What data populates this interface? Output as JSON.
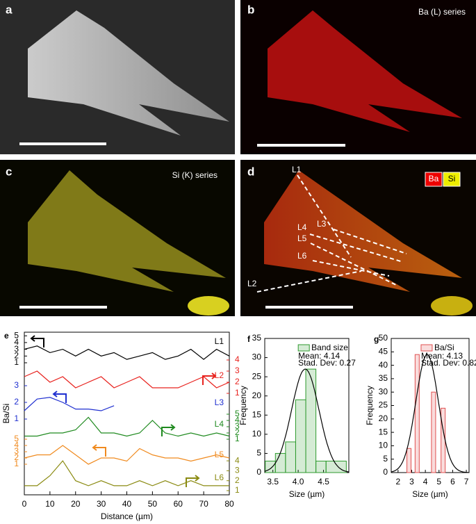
{
  "images": [
    {
      "label": "a"
    },
    {
      "label": "b",
      "caption": "Ba (L) series"
    },
    {
      "label": "c",
      "caption": "Si (K) series"
    },
    {
      "label": "d",
      "legend": [
        "Ba",
        "Si"
      ],
      "lines": [
        "L1",
        "L2",
        "L3",
        "L4",
        "L5",
        "L6"
      ]
    }
  ],
  "chart_data": [
    {
      "label": "e",
      "type": "line",
      "xlabel": "Distance (µm)",
      "ylabel": "Ba/Si",
      "xlim": [
        0,
        80
      ],
      "xticks": [
        0,
        10,
        20,
        30,
        40,
        50,
        60,
        70,
        80
      ],
      "x": [
        0,
        5,
        10,
        15,
        20,
        25,
        30,
        35,
        40,
        45,
        50,
        55,
        60,
        65,
        70,
        75,
        80
      ],
      "series": [
        {
          "name": "L1",
          "color": "#000000",
          "side": "left",
          "ticks": [
            1,
            2,
            3,
            4,
            5
          ],
          "values": [
            3,
            3.5,
            2.5,
            3,
            2,
            3,
            2,
            2.5,
            1.5,
            2,
            2.5,
            1.5,
            2,
            3,
            1.5,
            3,
            2
          ]
        },
        {
          "name": "L2",
          "color": "#e8231f",
          "side": "right",
          "ticks": [
            1,
            2,
            3,
            4
          ],
          "values": [
            2.5,
            3,
            2,
            2.5,
            1.5,
            2,
            2.5,
            1.5,
            2,
            2.5,
            1.5,
            1.5,
            1.5,
            2,
            2.5,
            1.5,
            2
          ]
        },
        {
          "name": "L3",
          "color": "#1f2fd0",
          "side": "left",
          "ticks": [
            1,
            2,
            3
          ],
          "values": [
            1.5,
            2.2,
            2.3,
            2,
            1.6,
            1.6,
            1.5,
            1.8,
            null,
            null,
            null,
            null,
            null,
            null,
            null,
            null,
            null
          ]
        },
        {
          "name": "L4",
          "color": "#1f8a1f",
          "side": "right",
          "ticks": [
            1,
            2,
            3,
            4,
            5
          ],
          "values": [
            1.5,
            1.5,
            2,
            2,
            2.5,
            4.5,
            2,
            2,
            1.5,
            2,
            4,
            2,
            1.5,
            2,
            1.5,
            2,
            1.5
          ]
        },
        {
          "name": "L5",
          "color": "#f08a1e",
          "side": "left",
          "ticks": [
            1,
            2,
            3,
            4,
            5
          ],
          "values": [
            2,
            2.5,
            2.5,
            4,
            2.5,
            1,
            2,
            2,
            1.5,
            3.5,
            2.5,
            2,
            2,
            1.5,
            2,
            2.5,
            2
          ]
        },
        {
          "name": "L6",
          "color": "#8a8a10",
          "side": "right",
          "ticks": [
            1,
            2,
            3,
            4
          ],
          "values": [
            1.5,
            1.5,
            2.5,
            4,
            2,
            1.5,
            2,
            1.5,
            1.5,
            2,
            1.5,
            2,
            1.5,
            2,
            1.5,
            1.5,
            1.5
          ]
        }
      ]
    },
    {
      "label": "f",
      "type": "histogram",
      "xlabel": "Size (µm)",
      "ylabel": "Frequency",
      "color": "#2e9a2e",
      "xlim": [
        3.34,
        5.0
      ],
      "xticks": [
        {
          "value": 3.5,
          "label": "3.5"
        },
        {
          "value": 4,
          "label": "4.0"
        },
        {
          "value": 4.5,
          "label": "4.5"
        }
      ],
      "ylim": [
        0,
        35
      ],
      "yticks": [
        0,
        5,
        10,
        15,
        20,
        25,
        30,
        35
      ],
      "bins": [
        3.35,
        3.55,
        3.75,
        3.95,
        4.15,
        4.35,
        4.55,
        4.95
      ],
      "values": [
        3,
        5,
        8,
        19,
        27,
        3,
        3
      ],
      "legend": {
        "name": "Band size",
        "mean": "Mean: 4.14",
        "sd": "Stad. Dev: 0.27"
      },
      "fit": {
        "mean": 4.14,
        "sd": 0.27,
        "peak": 27
      }
    },
    {
      "label": "g",
      "type": "bar",
      "xlabel": "Size (µm)",
      "ylabel": "Frequency",
      "color": "#e05050",
      "xlim": [
        1.5,
        7.2
      ],
      "xticks": [
        2,
        3,
        4,
        5,
        6,
        7
      ],
      "ylim": [
        0,
        50
      ],
      "yticks": [
        0,
        5,
        10,
        15,
        20,
        25,
        30,
        35,
        40,
        45,
        50
      ],
      "x": [
        2.8,
        3.4,
        4.6,
        5.3
      ],
      "values": [
        9,
        44,
        30,
        24
      ],
      "legend": {
        "name": "Ba/Si",
        "mean": "Mean: 4.13",
        "sd": "Stad. Dev: 0.82"
      },
      "fit": {
        "mean": 4.13,
        "sd": 0.82,
        "peak": 44
      }
    }
  ]
}
